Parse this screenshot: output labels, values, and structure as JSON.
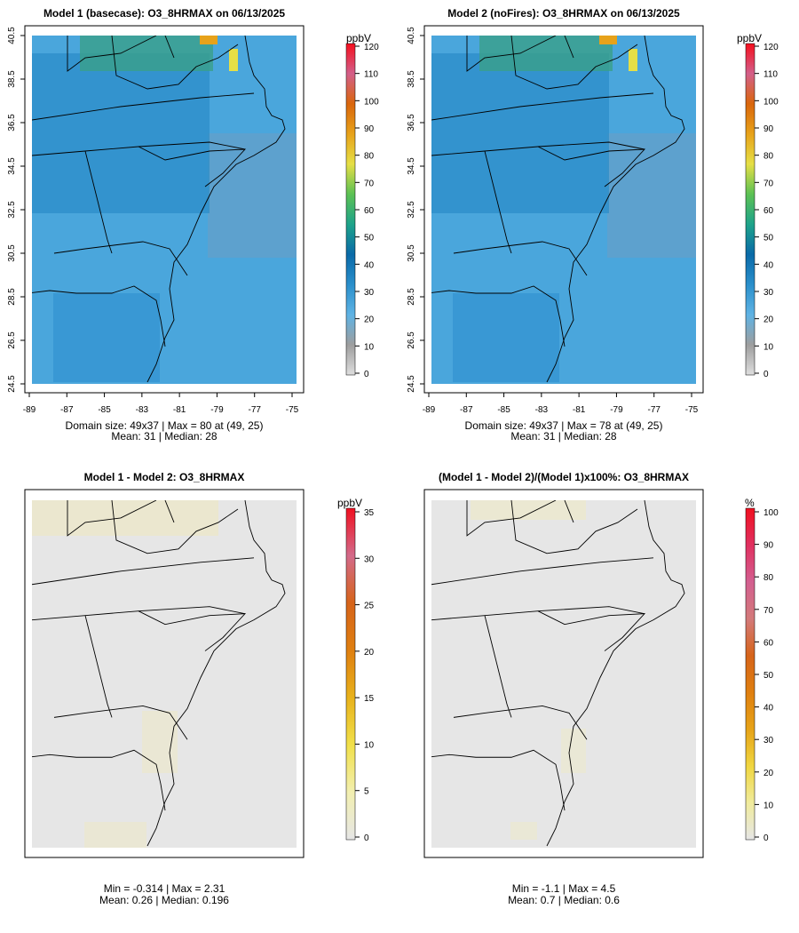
{
  "chart_data": [
    {
      "type": "heatmap",
      "title": "Model 1 (basecase): O3_8HRMAX on 06/13/2025",
      "x_ticks": [
        "-89",
        "-87",
        "-85",
        "-83",
        "-81",
        "-79",
        "-77",
        "-75"
      ],
      "y_ticks": [
        "24.5",
        "26.5",
        "28.5",
        "30.5",
        "32.5",
        "34.5",
        "36.5",
        "38.5",
        "40.5"
      ],
      "xlim": [
        -89,
        -75
      ],
      "ylim": [
        24.5,
        40.5
      ],
      "colorbar": {
        "unit": "ppbV",
        "ticks": [
          "0",
          "10",
          "20",
          "30",
          "40",
          "50",
          "60",
          "70",
          "80",
          "90",
          "100",
          "110",
          "120"
        ],
        "range": [
          0,
          120
        ]
      },
      "stats": [
        "Domain size: 49x37 | Max = 80 at (49, 25)",
        "Mean: 31 |  Median: 28"
      ],
      "fill": "#4aa6dc"
    },
    {
      "type": "heatmap",
      "title": "Model 2 (noFires): O3_8HRMAX on 06/13/2025",
      "x_ticks": [
        "-89",
        "-87",
        "-85",
        "-83",
        "-81",
        "-79",
        "-77",
        "-75"
      ],
      "y_ticks": [
        "24.5",
        "26.5",
        "28.5",
        "30.5",
        "32.5",
        "34.5",
        "36.5",
        "38.5",
        "40.5"
      ],
      "xlim": [
        -89,
        -75
      ],
      "ylim": [
        24.5,
        40.5
      ],
      "colorbar": {
        "unit": "ppbV",
        "ticks": [
          "0",
          "10",
          "20",
          "30",
          "40",
          "50",
          "60",
          "70",
          "80",
          "90",
          "100",
          "110",
          "120"
        ],
        "range": [
          0,
          120
        ]
      },
      "stats": [
        "Domain size: 49x37 | Max = 78 at (49, 25)",
        "Mean: 31 |  Median: 28"
      ],
      "fill": "#4aa6dc"
    },
    {
      "type": "heatmap",
      "title": "Model 1 - Model 2: O3_8HRMAX",
      "colorbar": {
        "unit": "ppbV",
        "ticks": [
          "0",
          "5",
          "10",
          "15",
          "20",
          "25",
          "30",
          "35"
        ],
        "range": [
          0,
          35
        ]
      },
      "stats": [
        "Min = -0.314 | Max = 2.31",
        "Mean: 0.26 |  Median: 0.196"
      ],
      "fill": "#e6e6e6"
    },
    {
      "type": "heatmap",
      "title": "(Model 1 - Model 2)/(Model 1)x100%: O3_8HRMAX",
      "colorbar": {
        "unit": "%",
        "ticks": [
          "0",
          "10",
          "20",
          "30",
          "40",
          "50",
          "60",
          "70",
          "80",
          "90",
          "100"
        ],
        "range": [
          0,
          100
        ]
      },
      "stats": [
        "Min = -1.1 | Max = 4.5",
        "Mean: 0.7 |  Median: 0.6"
      ],
      "fill": "#e6e6e6"
    }
  ],
  "colors": {
    "scale_ppbv_top": [
      "#dedede",
      "#9e9e9e",
      "#5fb3e4",
      "#2a8fcb",
      "#0a6aa8",
      "#1ea38a",
      "#5cc154",
      "#e6df46",
      "#e7a21a",
      "#d9660c",
      "#d35f8a",
      "#f50f1e"
    ],
    "scale_diff": [
      "#e6e6e6",
      "#f2efb0",
      "#f1e04a",
      "#e8b21c",
      "#df7f10",
      "#d6641a",
      "#d36a8a",
      "#f01020"
    ],
    "scale_pct": [
      "#e6e6e6",
      "#f0eb9c",
      "#f0d640",
      "#e6a318",
      "#df7f10",
      "#d6641a",
      "#d37a7a",
      "#d35f90",
      "#e03060",
      "#f01020"
    ],
    "map_line": "#000000"
  }
}
